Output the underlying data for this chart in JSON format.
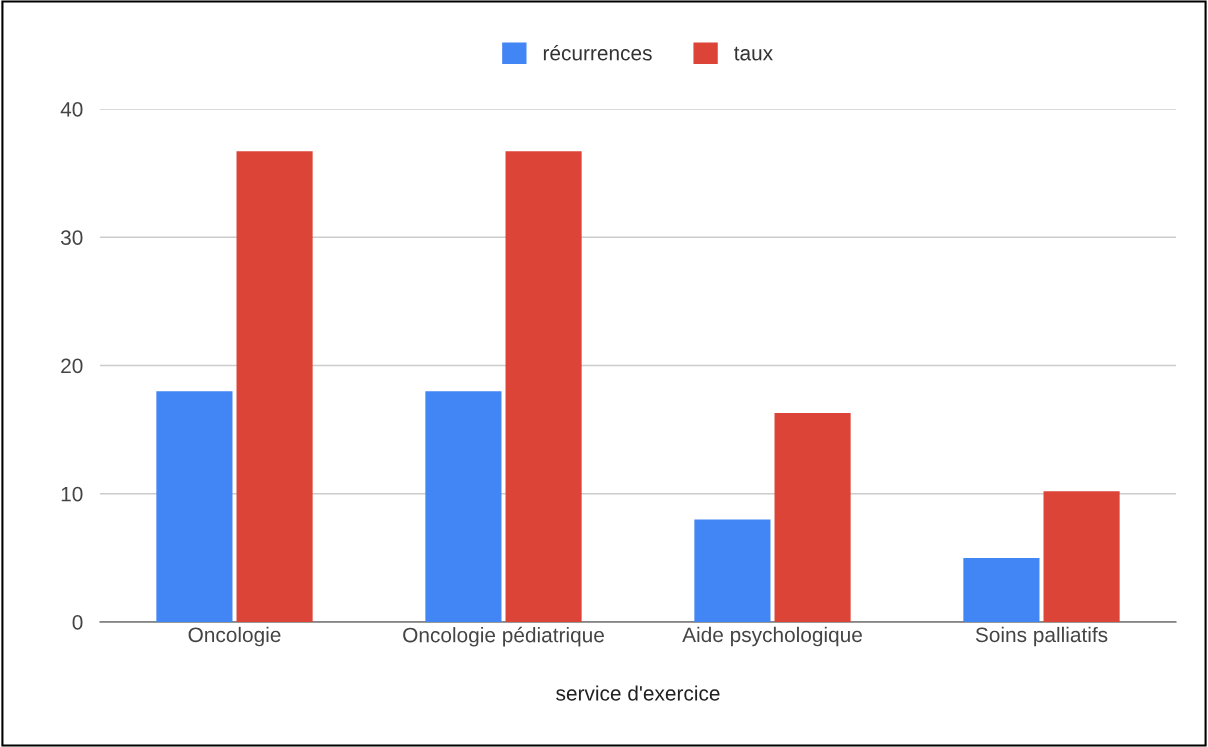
{
  "chart_data": {
    "type": "bar",
    "xlabel": "service d'exercice",
    "categories": [
      "Oncologie",
      "Oncologie pédiatrique",
      "Aide psychologique",
      "Soins palliatifs"
    ],
    "series": [
      {
        "name": "récurrences",
        "color": "#4285f4",
        "values": [
          18,
          18,
          8,
          5
        ]
      },
      {
        "name": "taux",
        "color": "#db4437",
        "values": [
          36.7,
          36.7,
          16.3,
          10.2
        ]
      }
    ],
    "ylim": [
      0,
      40
    ],
    "yticks": [
      0,
      10,
      20,
      30,
      40
    ],
    "grid": "y",
    "legend": "top"
  }
}
